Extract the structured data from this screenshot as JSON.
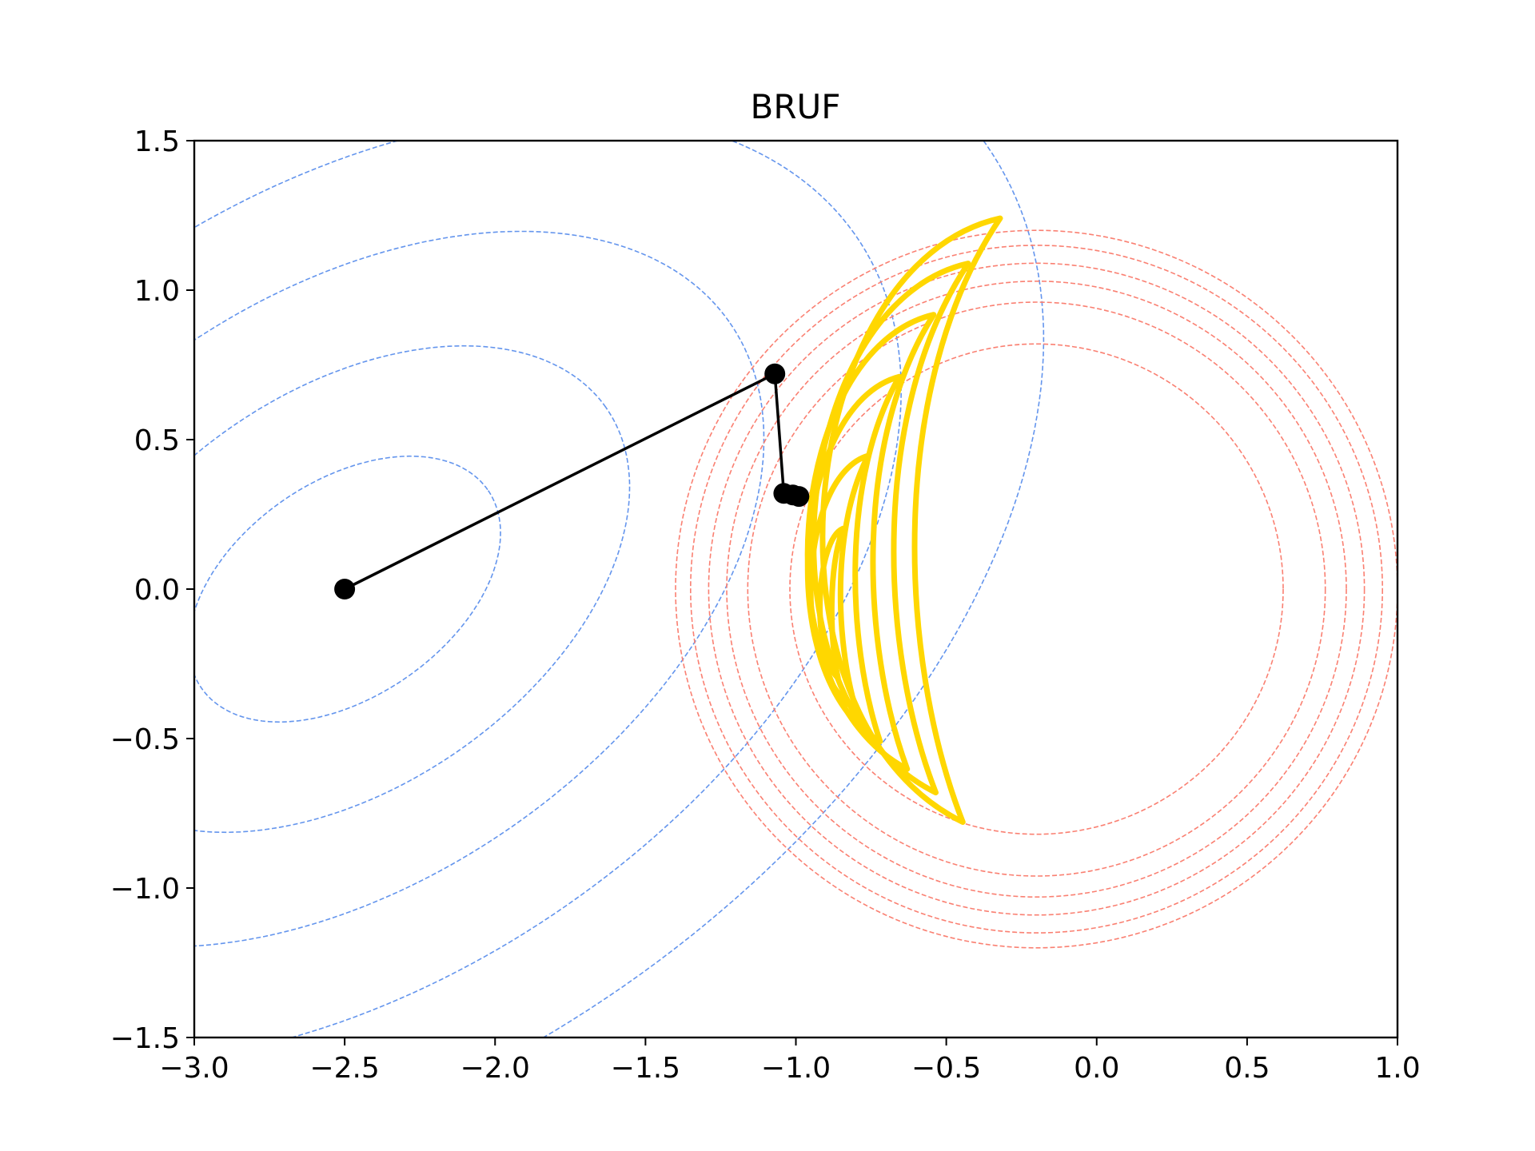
{
  "chart_data": {
    "type": "contour",
    "title": "BRUF",
    "xlabel": "",
    "ylabel": "",
    "xlim": [
      -3.0,
      1.0
    ],
    "ylim": [
      -1.5,
      1.5
    ],
    "grid": false,
    "x_ticks": [
      -3.0,
      -2.5,
      -2.0,
      -1.5,
      -1.0,
      -0.5,
      0.0,
      0.5,
      1.0
    ],
    "y_ticks": [
      -1.5,
      -1.0,
      -0.5,
      0.0,
      0.5,
      1.0,
      1.5
    ],
    "x_tick_labels": [
      "−3.0",
      "−2.5",
      "−2.0",
      "−1.5",
      "−1.0",
      "−0.5",
      "0.0",
      "0.5",
      "1.0"
    ],
    "y_tick_labels": [
      "−1.5",
      "−1.0",
      "−0.5",
      "0.0",
      "0.5",
      "1.0",
      "1.5"
    ],
    "colors": {
      "prior_contours": "#6495ed",
      "likelihood_contours": "#fa8072",
      "posterior_contours": "#ffd700",
      "path": "#000000"
    },
    "prior_contours": {
      "center": [
        -2.5,
        0.0
      ],
      "ellipses": [
        {
          "a": 0.58,
          "b": 0.36,
          "angle_deg": 35
        },
        {
          "a": 1.06,
          "b": 0.66,
          "angle_deg": 35
        },
        {
          "a": 1.56,
          "b": 0.97,
          "angle_deg": 35
        },
        {
          "a": 2.07,
          "b": 1.29,
          "angle_deg": 35
        },
        {
          "a": 2.6,
          "b": 1.62,
          "angle_deg": 35
        }
      ]
    },
    "likelihood_contours": {
      "center": [
        -0.2,
        0.0
      ],
      "radii": [
        0.82,
        0.96,
        1.03,
        1.09,
        1.15,
        1.2
      ]
    },
    "posterior_contours": {
      "levels": [
        {
          "center": [
            -0.88,
            -0.06
          ],
          "w": 0.04,
          "h": 0.5
        },
        {
          "center": [
            -0.85,
            0.0
          ],
          "w": 0.1,
          "h": 0.85
        },
        {
          "center": [
            -0.8,
            0.07
          ],
          "w": 0.16,
          "h": 1.22
        },
        {
          "center": [
            -0.74,
            0.12
          ],
          "w": 0.22,
          "h": 1.52
        },
        {
          "center": [
            -0.67,
            0.16
          ],
          "w": 0.27,
          "h": 1.77
        },
        {
          "center": [
            -0.6,
            0.18
          ],
          "w": 0.31,
          "h": 2.02
        }
      ]
    },
    "path": {
      "x": [
        -2.5,
        -1.07,
        -1.04,
        -1.01,
        -0.99
      ],
      "y": [
        0.0,
        0.72,
        0.32,
        0.315,
        0.31
      ]
    }
  }
}
